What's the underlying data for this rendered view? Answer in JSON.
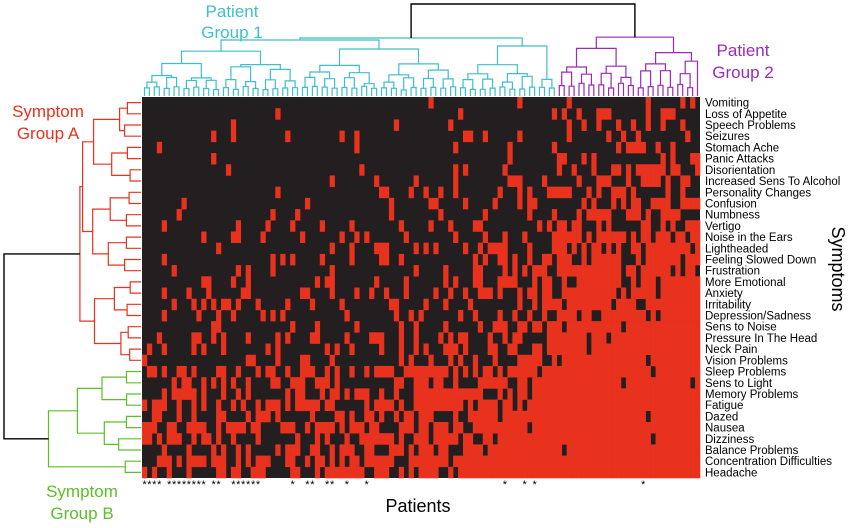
{
  "colors": {
    "cell_on": "#e8321e",
    "cell_off": "#231f20",
    "patient_group_1": "#3fbfc8",
    "patient_group_2": "#9a2bb5",
    "symptom_group_a": "#e8321e",
    "symptom_group_b": "#5cbf2a",
    "dendro_root": "#000000",
    "asterisk": "#000000"
  },
  "labels": {
    "patient_group_1": [
      "Patient",
      "Group 1"
    ],
    "patient_group_2": [
      "Patient",
      "Group 2"
    ],
    "symptom_group_a": [
      "Symptom",
      "Group A"
    ],
    "symptom_group_b": [
      "Symptom",
      "Group B"
    ]
  },
  "chart_data": {
    "type": "heatmap",
    "title": "",
    "xlabel": "Patients",
    "ylabel": "Symptoms",
    "n_patients": 113,
    "patient_group_1_count": 84,
    "patient_group_2_count": 29,
    "symptom_group_a_count": 24,
    "symptom_group_b_count": 10,
    "symptoms": [
      "Vomiting",
      "Loss of Appetite",
      "Speech Problems",
      "Seizures",
      "Stomach Ache",
      "Panic Attacks",
      "Disorientation",
      "Increased Sens To Alcohol",
      "Personality Changes",
      "Confusion",
      "Numbness",
      "Vertigo",
      "Noise in the Ears",
      "Lightheaded",
      "Feeling Slowed Down",
      "Frustration",
      "More Emotional",
      "Anxiety",
      "Irritability",
      "Depression/Sadness",
      "Sens to Noise",
      "Pressure In The Head",
      "Neck Pain",
      "Vision Problems",
      "Sleep Problems",
      "Sens to Light",
      "Memory Problems",
      "Fatigue",
      "Dazed",
      "Nausea",
      "Dizziness",
      "Balance Problems",
      "Concentration Difficulties",
      "Headache"
    ],
    "symptom_prevalence": [
      0.05,
      0.06,
      0.08,
      0.08,
      0.1,
      0.12,
      0.13,
      0.15,
      0.17,
      0.18,
      0.2,
      0.22,
      0.25,
      0.27,
      0.29,
      0.31,
      0.33,
      0.35,
      0.37,
      0.39,
      0.41,
      0.43,
      0.45,
      0.47,
      0.52,
      0.56,
      0.6,
      0.64,
      0.68,
      0.72,
      0.76,
      0.8,
      0.84,
      0.9
    ],
    "asterisk_patients": [
      0,
      1,
      2,
      3,
      5,
      6,
      7,
      8,
      9,
      10,
      11,
      12,
      14,
      15,
      18,
      19,
      20,
      21,
      22,
      23,
      30,
      33,
      34,
      37,
      38,
      41,
      45,
      73,
      77,
      79,
      101
    ],
    "cell_values": "1 = symptom reported (red), 0 = not reported (black); matrix approximated with increasing density toward the right and bottom, clustered by hierarchical dendrograms"
  }
}
